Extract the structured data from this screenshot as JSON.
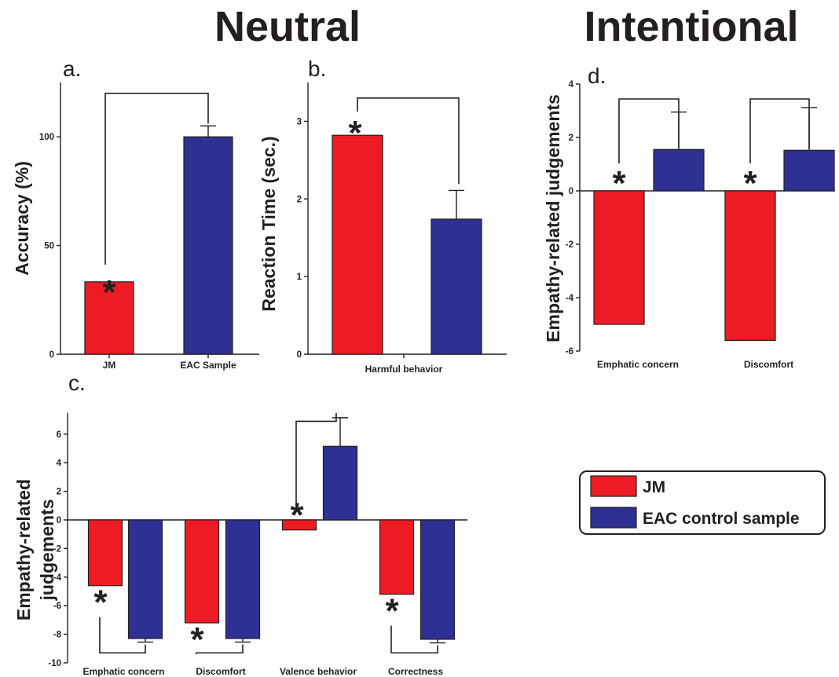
{
  "headings": {
    "neutral": "Neutral",
    "intentional": "Intentional"
  },
  "colors": {
    "jm": "#ed1c24",
    "eac": "#2e3192"
  },
  "legend": {
    "jm_label": "JM",
    "eac_label": "EAC control sample"
  },
  "chart_data": [
    {
      "id": "a",
      "panel_label": "a.",
      "type": "bar",
      "ylabel": "Accuracy (%)",
      "ylim": [
        0,
        125
      ],
      "yticks": [
        0,
        50,
        100
      ],
      "categories": [
        "JM",
        "EAC Sample"
      ],
      "series": [
        {
          "group": "JM",
          "values": [
            33.3,
            null
          ]
        },
        {
          "group": "EAC",
          "values": [
            null,
            100
          ]
        }
      ],
      "error_up": [
        null,
        5
      ],
      "asterisks": [
        "JM"
      ],
      "significance": "JM vs EAC Sample"
    },
    {
      "id": "b",
      "panel_label": "b.",
      "type": "bar",
      "ylabel": "Reaction Time (sec.)",
      "ylim": [
        0,
        3.5
      ],
      "yticks": [
        0,
        1,
        2,
        3
      ],
      "categories": [
        "Harmful behavior"
      ],
      "series": [
        {
          "group": "JM",
          "values": [
            2.82
          ]
        },
        {
          "group": "EAC",
          "values": [
            1.74
          ]
        }
      ],
      "error_up": {
        "EAC": 0.37
      },
      "asterisks": [
        "JM"
      ],
      "significance": "JM vs EAC"
    },
    {
      "id": "c",
      "panel_label": "c.",
      "type": "bar",
      "ylabel": "Empathy-related judgements",
      "ylim": [
        -10,
        7.5
      ],
      "yticks": [
        -10,
        -8,
        -6,
        -4,
        -2,
        0,
        2,
        4,
        6
      ],
      "categories": [
        "Emphatic concern",
        "Discomfort",
        "Valence behavior",
        "Correctness"
      ],
      "series": [
        {
          "group": "JM",
          "values": [
            -4.6,
            -7.2,
            -0.7,
            -5.2
          ]
        },
        {
          "group": "EAC",
          "values": [
            -8.3,
            -8.3,
            5.15,
            -8.35
          ]
        }
      ],
      "error_eac": [
        0.25,
        0.25,
        2.0,
        0.25
      ],
      "asterisks": [
        "Emphatic concern",
        "Discomfort",
        "Valence behavior",
        "Correctness"
      ]
    },
    {
      "id": "d",
      "panel_label": "d.",
      "type": "bar",
      "ylabel": "Empathy-related judgements",
      "ylim": [
        -6,
        4
      ],
      "yticks": [
        -6,
        -4,
        -2,
        0,
        2,
        4
      ],
      "categories": [
        "Emphatic concern",
        "Discomfort"
      ],
      "series": [
        {
          "group": "JM",
          "values": [
            -5.0,
            -5.6
          ]
        },
        {
          "group": "EAC",
          "values": [
            1.55,
            1.52
          ]
        }
      ],
      "error_eac": [
        1.4,
        1.6
      ],
      "asterisks": [
        "Emphatic concern",
        "Discomfort"
      ]
    }
  ]
}
